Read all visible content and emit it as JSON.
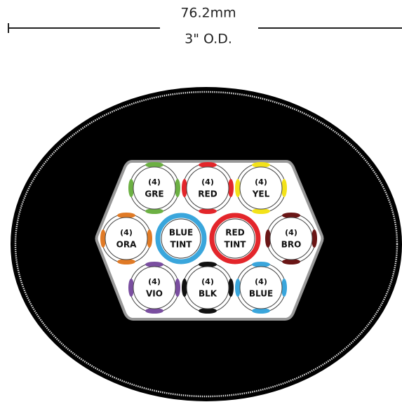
{
  "dimension": {
    "metric": "76.2mm",
    "imperial": "3\" O.D."
  },
  "cells": [
    {
      "count": "(4)",
      "label": "GRE",
      "color": "#6cb043"
    },
    {
      "count": "(4)",
      "label": "RED",
      "color": "#e3262b"
    },
    {
      "count": "(4)",
      "label": "YEL",
      "color": "#f3e21a"
    },
    {
      "count": "(4)",
      "label": "ORA",
      "color": "#e07a26"
    },
    {
      "count": "(4)",
      "label": "BRO",
      "color": "#6a1616"
    },
    {
      "count": "(4)",
      "label": "VIO",
      "color": "#7a4ea0"
    },
    {
      "count": "(4)",
      "label": "BLK",
      "color": "#111111"
    },
    {
      "count": "(4)",
      "label": "BLUE",
      "color": "#3aa6dc"
    }
  ],
  "tints": [
    {
      "lines": [
        "BLUE",
        "TINT"
      ],
      "color": "#3aa6dc"
    },
    {
      "lines": [
        "RED",
        "TINT"
      ],
      "color": "#e3262b"
    }
  ]
}
